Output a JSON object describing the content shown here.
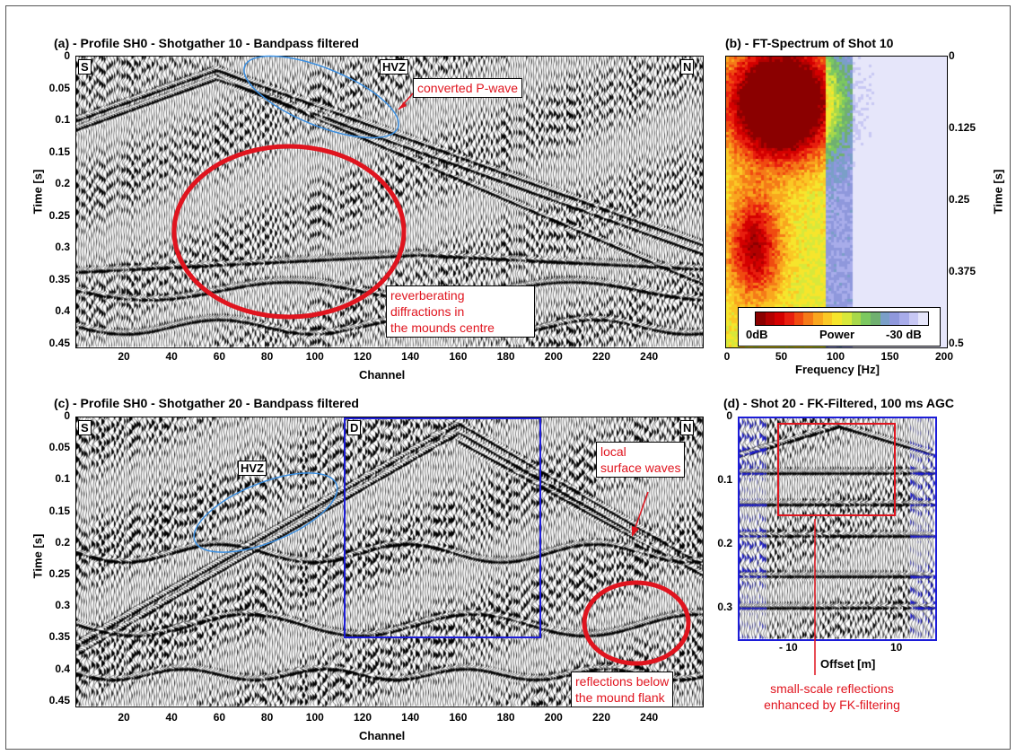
{
  "panel_a": {
    "title": "(a) - Profile SH0 - Shotgather 10 - Bandpass filtered",
    "labels": {
      "s": "S",
      "hvz": "HVZ",
      "n": "N"
    },
    "y_ticks": [
      "0",
      "0.05",
      "0.1",
      "0.15",
      "0.2",
      "0.25",
      "0.3",
      "0.35",
      "0.4",
      "0.45"
    ],
    "x_ticks": [
      "20",
      "40",
      "60",
      "80",
      "100",
      "120",
      "140",
      "160",
      "180",
      "200",
      "220",
      "240"
    ],
    "ylabel": "Time [s]",
    "xlabel": "Channel",
    "annotation_pwave": "converted P-wave",
    "annotation_diffractions": [
      "reverberating",
      "diffractions in",
      "the mounds centre"
    ]
  },
  "panel_b": {
    "title": "(b) - FT-Spectrum of Shot 10",
    "y_ticks": [
      "0",
      "0.125",
      "0.25",
      "0.375",
      "0.5"
    ],
    "x_ticks": [
      "0",
      "50",
      "100",
      "150",
      "200"
    ],
    "ylabel": "Time [s]",
    "xlabel": "Frequency [Hz]",
    "legend": {
      "left": "0dB",
      "mid": "Power",
      "right": "-30 dB"
    },
    "colorbar": [
      "#8b0000",
      "#b30000",
      "#d40000",
      "#e81e0e",
      "#f04a10",
      "#f57a18",
      "#f9a61e",
      "#fac825",
      "#f6e52c",
      "#d8e83a",
      "#a8d84a",
      "#7cc860",
      "#70b070",
      "#7a9fc8",
      "#8f98dc",
      "#a8acea",
      "#c8c8f4",
      "#e6e6fa"
    ]
  },
  "panel_c": {
    "title": "(c) - Profile SH0 - Shotgather 20 - Bandpass filtered",
    "labels": {
      "s": "S",
      "hvz": "HVZ",
      "d": "D",
      "n": "N"
    },
    "y_ticks": [
      "0",
      "0.05",
      "0.1",
      "0.15",
      "0.2",
      "0.25",
      "0.3",
      "0.35",
      "0.4",
      "0.45"
    ],
    "x_ticks": [
      "20",
      "40",
      "60",
      "80",
      "100",
      "120",
      "140",
      "160",
      "180",
      "200",
      "220",
      "240"
    ],
    "ylabel": "Time [s]",
    "xlabel": "Channel",
    "annotation_surface": [
      "local",
      "surface waves"
    ],
    "annotation_reflections": [
      "reflections below",
      "the mound flank"
    ]
  },
  "panel_d": {
    "title": "(d) - Shot 20 - FK-Filtered, 100 ms AGC",
    "y_ticks": [
      "0",
      "0.1",
      "0.2",
      "0.3"
    ],
    "x_ticks": [
      "- 10",
      "10"
    ],
    "xlabel": "Offset [m]",
    "annotation": [
      "small-scale reflections",
      "enhanced by FK-filtering"
    ]
  },
  "colors": {
    "annotation_red": "#e0141e",
    "box_blue": "#1c1cd8",
    "ellipse_blue": "#3a8ee0"
  }
}
